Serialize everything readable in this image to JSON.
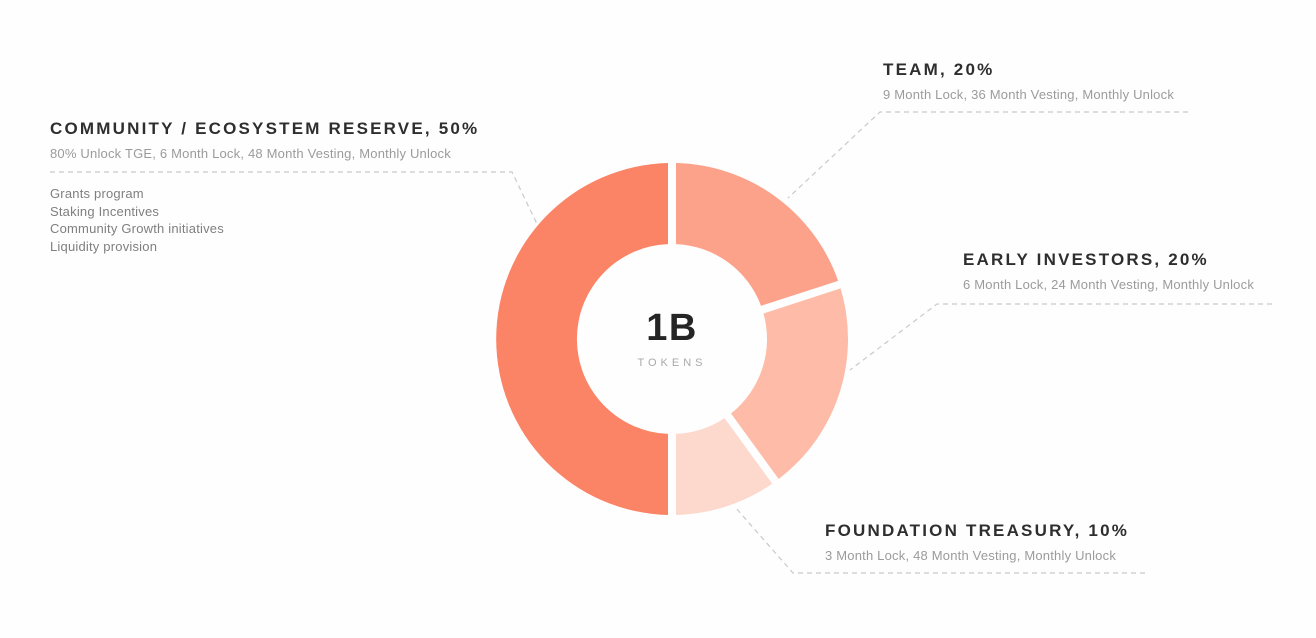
{
  "chart_data": {
    "type": "pie",
    "subtype": "donut",
    "start_angle_deg": 0,
    "clockwise": true,
    "center_total": {
      "value": "1B",
      "caption": "TOKENS"
    },
    "segments": [
      {
        "label": "Team",
        "value_pct": 20,
        "color": "#FDA28A",
        "details": "9 Month Lock, 36 Month Vesting, Monthly Unlock"
      },
      {
        "label": "Early Investors",
        "value_pct": 20,
        "color": "#FDBBA8",
        "details": "6 Month Lock, 24 Month Vesting, Monthly Unlock"
      },
      {
        "label": "Foundation Treasury",
        "value_pct": 10,
        "color": "#FDD8CC",
        "details": "3 Month Lock, 48 Month Vesting, Monthly Unlock"
      },
      {
        "label": "Community / Ecosystem Reserve",
        "value_pct": 50,
        "color": "#FB8366",
        "details": "80% Unlock TGE, 6 Month Lock, 48 Month Vesting, Monthly Unlock",
        "notes": [
          "Grants program",
          "Staking Incentives",
          "Community Growth initiatives",
          "Liquidity provision"
        ]
      }
    ],
    "legend_position": "callouts-with-dashed-leaders",
    "connector_color": "#c9c9c9"
  },
  "center": {
    "value": "1B",
    "caption": "TOKENS"
  },
  "labels": {
    "community": {
      "title": "COMMUNITY / ECOSYSTEM RESERVE, 50%",
      "subtitle": "80% Unlock TGE, 6 Month Lock, 48 Month Vesting, Monthly Unlock",
      "notes": [
        "Grants program",
        "Staking Incentives",
        "Community Growth initiatives",
        "Liquidity provision"
      ]
    },
    "team": {
      "title": "TEAM, 20%",
      "subtitle": "9 Month Lock, 36 Month Vesting, Monthly Unlock"
    },
    "early_investors": {
      "title": "EARLY INVESTORS, 20%",
      "subtitle": "6 Month Lock, 24 Month Vesting, Monthly Unlock"
    },
    "foundation_treasury": {
      "title": "FOUNDATION TREASURY, 10%",
      "subtitle": "3 Month Lock, 48 Month Vesting, Monthly Unlock"
    }
  }
}
